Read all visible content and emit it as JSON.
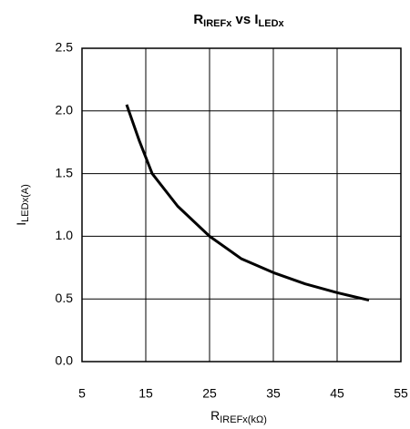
{
  "chart_data": {
    "type": "line",
    "title": [
      "R",
      "IREFx",
      " vs I",
      "LEDx"
    ],
    "x_label": [
      "R",
      "IREFx(kΩ)"
    ],
    "y_label": [
      "I",
      "LEDx(A)"
    ],
    "series": [
      {
        "color": "#000000",
        "x": [
          12,
          14,
          16,
          20,
          25,
          30,
          35,
          40,
          45,
          50
        ],
        "values": [
          2.05,
          1.76,
          1.5,
          1.24,
          1.0,
          0.82,
          0.71,
          0.62,
          0.55,
          0.49
        ]
      }
    ],
    "xlim": [
      5,
      55
    ],
    "xticks": [
      5,
      15,
      25,
      35,
      45,
      55
    ],
    "ylim": [
      0,
      2.5
    ],
    "yticks": [
      {
        "value": 0,
        "label": "0.0"
      },
      0.5,
      {
        "value": 1,
        "label": "1.0"
      },
      1.5,
      {
        "value": 2,
        "label": "2.0"
      },
      2.5
    ],
    "grid": true
  }
}
